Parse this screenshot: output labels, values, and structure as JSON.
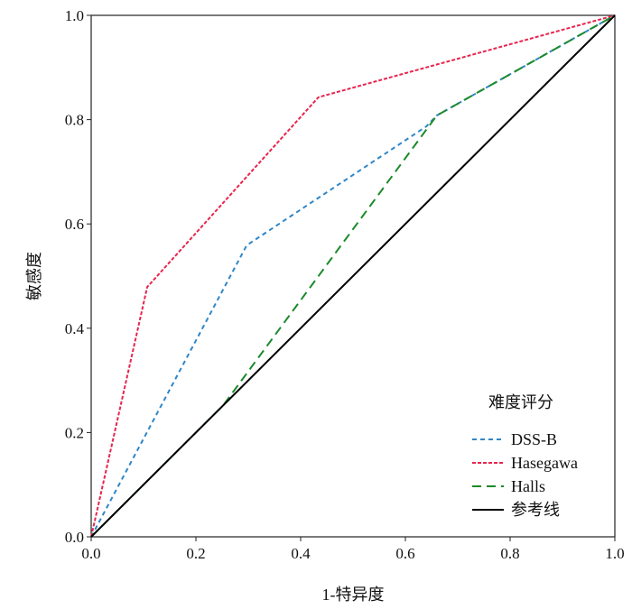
{
  "chart_data": {
    "type": "line",
    "title": "",
    "xlabel": "1-特异度",
    "ylabel": "敏感度",
    "xlim": [
      0,
      1
    ],
    "ylim": [
      0,
      1
    ],
    "xticks": [
      "0.0",
      "0.2",
      "0.4",
      "0.6",
      "0.8",
      "1.0"
    ],
    "yticks": [
      "0.0",
      "0.2",
      "0.4",
      "0.6",
      "0.8",
      "1.0"
    ],
    "grid": false,
    "legend": {
      "title": "难度评分",
      "placement": "bottom-right"
    },
    "series": [
      {
        "name": "DSS-B",
        "color": "#2e86c8",
        "dash": "5,4",
        "x": [
          0,
          0.297,
          0.64,
          0.66,
          1
        ],
        "y": [
          0,
          0.559,
          0.787,
          0.808,
          1
        ]
      },
      {
        "name": "Hasegawa",
        "color": "#e8254f",
        "dash": "4,2",
        "x": [
          0,
          0.107,
          0.434,
          1
        ],
        "y": [
          0,
          0.479,
          0.843,
          1
        ]
      },
      {
        "name": "Halls",
        "color": "#1a8a2a",
        "dash": "10,6",
        "x": [
          0,
          0.252,
          0.66,
          1
        ],
        "y": [
          0,
          0.252,
          0.808,
          1
        ]
      },
      {
        "name": "参考线",
        "color": "#000000",
        "dash": "",
        "x": [
          0,
          1
        ],
        "y": [
          0,
          1
        ]
      }
    ]
  }
}
